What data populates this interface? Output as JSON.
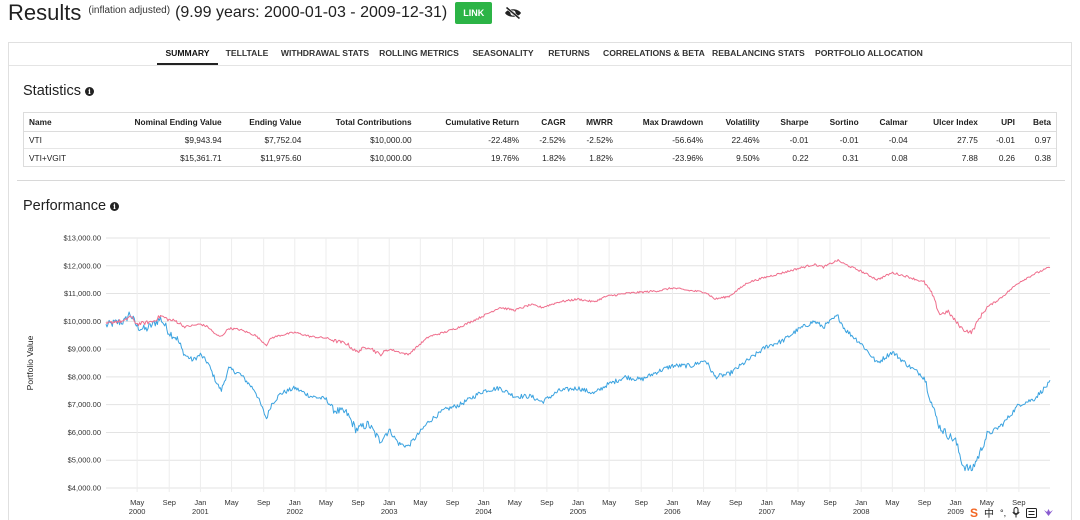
{
  "header": {
    "title": "Results",
    "subtitle": "(inflation adjusted)",
    "range": "(9.99 years: 2000-01-03 - 2009-12-31)",
    "link_label": "LINK",
    "hide_icon": "eye-slash-icon",
    "link_color": "#2cb446"
  },
  "tabs": [
    {
      "label": "SUMMARY",
      "active": true
    },
    {
      "label": "TELLTALE"
    },
    {
      "label": "WITHDRAWAL STATS"
    },
    {
      "label": "ROLLING METRICS"
    },
    {
      "label": "SEASONALITY"
    },
    {
      "label": "RETURNS"
    },
    {
      "label": "CORRELATIONS & BETA"
    },
    {
      "label": "REBALANCING STATS"
    },
    {
      "label": "PORTFOLIO ALLOCATION"
    }
  ],
  "statistics": {
    "title": "Statistics",
    "info_icon": "info-icon",
    "columns": [
      "Name",
      "Nominal Ending Value",
      "Ending Value",
      "Total Contributions",
      "Cumulative Return",
      "CAGR",
      "MWRR",
      "Max Drawdown",
      "Volatility",
      "Sharpe",
      "Sortino",
      "Calmar",
      "Ulcer Index",
      "UPI",
      "Beta"
    ],
    "rows": [
      [
        "VTI",
        "$9,943.94",
        "$7,752.04",
        "$10,000.00",
        "-22.48%",
        "-2.52%",
        "-2.52%",
        "-56.64%",
        "22.46%",
        "-0.01",
        "-0.01",
        "-0.04",
        "27.75",
        "-0.01",
        "0.97"
      ],
      [
        "VTI+VGIT",
        "$15,361.71",
        "$11,975.60",
        "$10,000.00",
        "19.76%",
        "1.82%",
        "1.82%",
        "-23.96%",
        "9.50%",
        "0.22",
        "0.31",
        "0.08",
        "7.88",
        "0.26",
        "0.38"
      ]
    ]
  },
  "performance": {
    "title": "Performance",
    "info_icon": "info-icon"
  },
  "chart_data": {
    "type": "line",
    "title": "",
    "xlabel": "",
    "ylabel": "Portfolio Value",
    "ylim": [
      4000,
      13000
    ],
    "xlim": [
      2000.0,
      2010.0
    ],
    "y_ticks": [
      "$4,000.00",
      "$5,000.00",
      "$6,000.00",
      "$7,000.00",
      "$8,000.00",
      "$9,000.00",
      "$10,000.00",
      "$11,000.00",
      "$12,000.00",
      "$13,000.00"
    ],
    "x_ticks": [
      {
        "month": "May",
        "year": "2000",
        "t": 2000.33
      },
      {
        "month": "Sep",
        "year": "",
        "t": 2000.67
      },
      {
        "month": "Jan",
        "year": "2001",
        "t": 2001.0
      },
      {
        "month": "May",
        "year": "",
        "t": 2001.33
      },
      {
        "month": "Sep",
        "year": "",
        "t": 2001.67
      },
      {
        "month": "Jan",
        "year": "2002",
        "t": 2002.0
      },
      {
        "month": "May",
        "year": "",
        "t": 2002.33
      },
      {
        "month": "Sep",
        "year": "",
        "t": 2002.67
      },
      {
        "month": "Jan",
        "year": "2003",
        "t": 2003.0
      },
      {
        "month": "May",
        "year": "",
        "t": 2003.33
      },
      {
        "month": "Sep",
        "year": "",
        "t": 2003.67
      },
      {
        "month": "Jan",
        "year": "2004",
        "t": 2004.0
      },
      {
        "month": "May",
        "year": "",
        "t": 2004.33
      },
      {
        "month": "Sep",
        "year": "",
        "t": 2004.67
      },
      {
        "month": "Jan",
        "year": "2005",
        "t": 2005.0
      },
      {
        "month": "May",
        "year": "",
        "t": 2005.33
      },
      {
        "month": "Sep",
        "year": "",
        "t": 2005.67
      },
      {
        "month": "Jan",
        "year": "2006",
        "t": 2006.0
      },
      {
        "month": "May",
        "year": "",
        "t": 2006.33
      },
      {
        "month": "Sep",
        "year": "",
        "t": 2006.67
      },
      {
        "month": "Jan",
        "year": "2007",
        "t": 2007.0
      },
      {
        "month": "May",
        "year": "",
        "t": 2007.33
      },
      {
        "month": "Sep",
        "year": "",
        "t": 2007.67
      },
      {
        "month": "Jan",
        "year": "2008",
        "t": 2008.0
      },
      {
        "month": "May",
        "year": "",
        "t": 2008.33
      },
      {
        "month": "Sep",
        "year": "",
        "t": 2008.67
      },
      {
        "month": "Jan",
        "year": "2009",
        "t": 2009.0
      },
      {
        "month": "May",
        "year": "",
        "t": 2009.33
      },
      {
        "month": "Sep",
        "year": "",
        "t": 2009.67
      }
    ],
    "grid": true,
    "series": [
      {
        "name": "VTI",
        "color": "#3ba3e0",
        "x": [
          2000.0,
          2000.1,
          2000.2,
          2000.25,
          2000.33,
          2000.42,
          2000.5,
          2000.58,
          2000.67,
          2000.75,
          2000.83,
          2000.92,
          2001.0,
          2001.08,
          2001.17,
          2001.22,
          2001.3,
          2001.42,
          2001.58,
          2001.7,
          2001.75,
          2001.85,
          2002.0,
          2002.17,
          2002.33,
          2002.42,
          2002.55,
          2002.65,
          2002.78,
          2002.9,
          2003.0,
          2003.1,
          2003.2,
          2003.3,
          2003.42,
          2003.58,
          2003.75,
          2004.0,
          2004.17,
          2004.33,
          2004.5,
          2004.62,
          2004.8,
          2005.0,
          2005.17,
          2005.3,
          2005.5,
          2005.67,
          2005.85,
          2006.0,
          2006.2,
          2006.35,
          2006.45,
          2006.6,
          2006.8,
          2007.0,
          2007.17,
          2007.33,
          2007.5,
          2007.6,
          2007.75,
          2007.83,
          2008.0,
          2008.17,
          2008.33,
          2008.5,
          2008.67,
          2008.75,
          2008.83,
          2008.92,
          2009.0,
          2009.08,
          2009.17,
          2009.25,
          2009.33,
          2009.42,
          2009.5,
          2009.67,
          2009.83,
          2010.0
        ],
        "values": [
          9850,
          9950,
          10000,
          10300,
          9800,
          9700,
          9900,
          10100,
          9600,
          9400,
          8800,
          8600,
          8800,
          8500,
          7800,
          7500,
          8300,
          8100,
          7500,
          6500,
          7000,
          7400,
          7600,
          7300,
          7200,
          6800,
          6700,
          6100,
          6300,
          5700,
          6100,
          5600,
          5500,
          5900,
          6400,
          6800,
          7000,
          7500,
          7600,
          7300,
          7300,
          7100,
          7500,
          7600,
          7400,
          7700,
          8000,
          7900,
          8200,
          8400,
          8400,
          8600,
          8000,
          8100,
          8600,
          9100,
          9300,
          9700,
          10000,
          9800,
          10200,
          9700,
          9200,
          8500,
          8900,
          8400,
          8000,
          7000,
          6200,
          5900,
          5700,
          4800,
          4650,
          5200,
          5900,
          6100,
          6300,
          7000,
          7200,
          7800
        ]
      },
      {
        "name": "VTI+VGIT",
        "color": "#ef6f8d",
        "x": [
          2000.0,
          2000.1,
          2000.2,
          2000.25,
          2000.33,
          2000.42,
          2000.5,
          2000.58,
          2000.67,
          2000.75,
          2000.83,
          2000.92,
          2001.0,
          2001.08,
          2001.17,
          2001.22,
          2001.3,
          2001.42,
          2001.58,
          2001.7,
          2001.75,
          2001.85,
          2002.0,
          2002.17,
          2002.33,
          2002.42,
          2002.55,
          2002.65,
          2002.78,
          2002.9,
          2003.0,
          2003.1,
          2003.2,
          2003.3,
          2003.42,
          2003.58,
          2003.75,
          2004.0,
          2004.17,
          2004.33,
          2004.5,
          2004.62,
          2004.8,
          2005.0,
          2005.17,
          2005.3,
          2005.5,
          2005.67,
          2005.85,
          2006.0,
          2006.2,
          2006.35,
          2006.45,
          2006.6,
          2006.8,
          2007.0,
          2007.17,
          2007.33,
          2007.5,
          2007.6,
          2007.75,
          2007.83,
          2008.0,
          2008.17,
          2008.33,
          2008.5,
          2008.67,
          2008.75,
          2008.83,
          2008.92,
          2009.0,
          2009.08,
          2009.17,
          2009.25,
          2009.33,
          2009.42,
          2009.5,
          2009.67,
          2009.83,
          2010.0
        ],
        "values": [
          9900,
          10000,
          10000,
          10200,
          9900,
          9950,
          10000,
          10200,
          10050,
          10000,
          9800,
          9850,
          9900,
          9800,
          9500,
          9450,
          9750,
          9700,
          9500,
          9150,
          9400,
          9500,
          9600,
          9450,
          9400,
          9300,
          9200,
          8900,
          9100,
          8800,
          9000,
          8900,
          8800,
          9100,
          9450,
          9600,
          9800,
          10200,
          10500,
          10400,
          10600,
          10500,
          10700,
          10800,
          10700,
          10900,
          11000,
          11050,
          11100,
          11200,
          11100,
          11050,
          10800,
          10900,
          11400,
          11600,
          11750,
          11900,
          12050,
          11950,
          12200,
          12050,
          11800,
          11500,
          11750,
          11600,
          11400,
          11000,
          10250,
          10350,
          10000,
          9700,
          9600,
          10100,
          10500,
          10700,
          10900,
          11400,
          11700,
          11950
        ]
      }
    ]
  },
  "tray": {
    "icons": [
      "sogou-s-icon",
      "chinese-input-icon",
      "punctuation-icon",
      "microphone-icon",
      "keyboard-icon",
      "skin-icon"
    ],
    "chinese_char": "中"
  }
}
